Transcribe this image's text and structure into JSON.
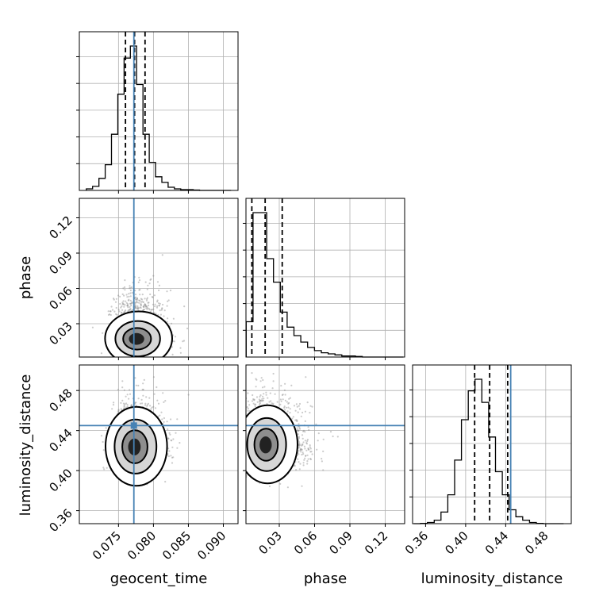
{
  "chart_data": {
    "type": "corner",
    "parameters": [
      "geocent_time",
      "phase",
      "luminosity_distance"
    ],
    "truths": {
      "geocent_time": 0.0772,
      "phase": null,
      "luminosity_distance": 0.445
    },
    "colors": {
      "truth": "#4682b4",
      "hist": "#000000",
      "grid": "#b0b0b0",
      "scatter": "#8c8c8c"
    },
    "grid": true,
    "ranges": {
      "geocent_time": [
        0.0694,
        0.0921
      ],
      "phase": [
        0.0017,
        0.1365
      ],
      "luminosity_distance": [
        0.347,
        0.5055
      ]
    },
    "ticks": {
      "geocent_time": [
        0.075,
        0.08,
        0.085,
        0.09
      ],
      "phase": [
        0.03,
        0.06,
        0.09,
        0.12
      ],
      "luminosity_distance": [
        0.36,
        0.4,
        0.44,
        0.48
      ]
    },
    "tick_labels": {
      "geocent_time": [
        "0.075",
        "0.080",
        "0.085",
        "0.090"
      ],
      "phase": [
        "0.03",
        "0.06",
        "0.09",
        "0.12"
      ],
      "luminosity_distance": [
        "0.36",
        "0.40",
        "0.44",
        "0.48"
      ]
    },
    "quantiles": {
      "geocent_time": [
        0.076,
        0.0773,
        0.0788
      ],
      "phase": [
        0.0067,
        0.018,
        0.0325
      ],
      "luminosity_distance": [
        0.409,
        0.424,
        0.442
      ]
    },
    "histograms": {
      "geocent_time": {
        "edges": [
          0.0704,
          0.0713,
          0.0722,
          0.0731,
          0.074,
          0.0749,
          0.0758,
          0.0767,
          0.0776,
          0.0785,
          0.0794,
          0.0803,
          0.0812,
          0.0821,
          0.083,
          0.0839,
          0.0848,
          0.0857,
          0.0866,
          0.0875,
          0.0884,
          0.0893,
          0.0902,
          0.0911
        ],
        "counts": [
          2,
          5,
          15,
          32,
          70,
          120,
          165,
          180,
          132,
          70,
          35,
          17,
          10,
          4,
          2,
          1,
          1,
          0.5,
          0,
          0,
          0,
          0,
          0
        ]
      },
      "phase": {
        "edges": [
          0.0019,
          0.0077,
          0.0135,
          0.0193,
          0.0251,
          0.0309,
          0.0367,
          0.0425,
          0.0483,
          0.0541,
          0.0599,
          0.0657,
          0.0715,
          0.0773,
          0.0831,
          0.0889,
          0.0947,
          0.1005,
          0.1063,
          0.1121,
          0.1179,
          0.1237,
          0.1295,
          0.1353
        ],
        "counts": [
          33,
          135,
          135,
          92,
          70,
          42,
          28,
          20,
          14,
          9,
          6,
          4,
          3,
          2,
          1,
          1,
          0.5,
          0,
          0,
          0,
          0,
          0,
          0
        ]
      },
      "luminosity_distance": {
        "edges": [
          0.3482,
          0.355,
          0.3618,
          0.3686,
          0.3754,
          0.3822,
          0.389,
          0.3958,
          0.4026,
          0.4094,
          0.4162,
          0.423,
          0.4298,
          0.4366,
          0.4434,
          0.4502,
          0.457,
          0.4638,
          0.4706,
          0.4774,
          0.4842,
          0.491,
          0.4978
        ],
        "counts": [
          0,
          0.3,
          1,
          3,
          10,
          25,
          55,
          90,
          115,
          125,
          105,
          75,
          45,
          25,
          12,
          6,
          3,
          1,
          0.3,
          0,
          0,
          0
        ]
      }
    },
    "joint": [
      {
        "x": "geocent_time",
        "y": "phase",
        "mean": [
          0.0775,
          0.017
        ],
        "sd": [
          0.0017,
          0.013
        ],
        "contour_levels": [
          {
            "sx": 0.0048,
            "sy": 0.023,
            "fill": "#ffffff"
          },
          {
            "sx": 0.0032,
            "sy": 0.015,
            "fill": "#d6d6d6"
          },
          {
            "sx": 0.002,
            "sy": 0.0092,
            "fill": "#8e8e8e"
          },
          {
            "sx": 0.0011,
            "sy": 0.005,
            "fill": "#222222"
          }
        ]
      },
      {
        "x": "geocent_time",
        "y": "luminosity_distance",
        "mean": [
          0.0772,
          0.4235
        ],
        "sd": [
          0.0016,
          0.015
        ],
        "contour_levels": [
          {
            "sx": 0.0044,
            "sy": 0.0395,
            "fill": "#ffffff"
          },
          {
            "sx": 0.003,
            "sy": 0.027,
            "fill": "#d6d6d6"
          },
          {
            "sx": 0.0018,
            "sy": 0.0165,
            "fill": "#8e8e8e"
          },
          {
            "sx": 0.0009,
            "sy": 0.0085,
            "fill": "#222222"
          }
        ]
      },
      {
        "x": "phase",
        "y": "luminosity_distance",
        "mean": [
          0.018,
          0.4255
        ],
        "sd": [
          0.014,
          0.015
        ],
        "contour_levels": [
          {
            "sx": 0.0255,
            "sy": 0.039,
            "fill": "#ffffff"
          },
          {
            "sx": 0.0165,
            "sy": 0.0265,
            "fill": "#d6d6d6"
          },
          {
            "sx": 0.01,
            "sy": 0.016,
            "fill": "#8e8e8e"
          },
          {
            "sx": 0.0052,
            "sy": 0.0085,
            "fill": "#222222"
          }
        ]
      }
    ]
  }
}
